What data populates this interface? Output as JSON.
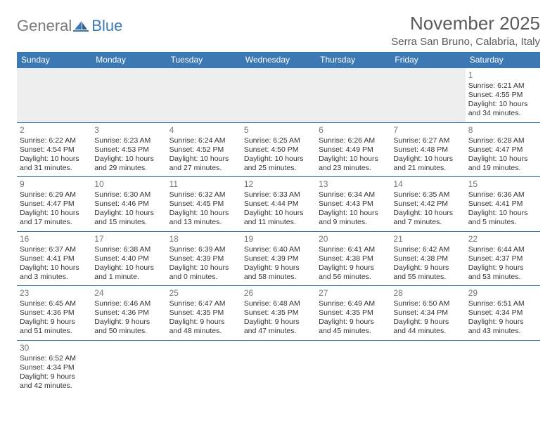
{
  "logo": {
    "word1": "General",
    "word2": "Blue"
  },
  "title": "November 2025",
  "location": "Serra San Bruno, Calabria, Italy",
  "colors": {
    "header_bg": "#3c78b4",
    "header_text": "#ffffff",
    "border": "#3c78b4",
    "empty_bg": "#eeeeee",
    "text": "#333333",
    "daynum": "#777777",
    "logo_gray": "#7a7a7a",
    "logo_blue": "#3c78b4"
  },
  "weekdays": [
    "Sunday",
    "Monday",
    "Tuesday",
    "Wednesday",
    "Thursday",
    "Friday",
    "Saturday"
  ],
  "weeks": [
    [
      null,
      null,
      null,
      null,
      null,
      null,
      {
        "n": "1",
        "sr": "6:21 AM",
        "ss": "4:55 PM",
        "dl": "10 hours and 34 minutes."
      }
    ],
    [
      {
        "n": "2",
        "sr": "6:22 AM",
        "ss": "4:54 PM",
        "dl": "10 hours and 31 minutes."
      },
      {
        "n": "3",
        "sr": "6:23 AM",
        "ss": "4:53 PM",
        "dl": "10 hours and 29 minutes."
      },
      {
        "n": "4",
        "sr": "6:24 AM",
        "ss": "4:52 PM",
        "dl": "10 hours and 27 minutes."
      },
      {
        "n": "5",
        "sr": "6:25 AM",
        "ss": "4:50 PM",
        "dl": "10 hours and 25 minutes."
      },
      {
        "n": "6",
        "sr": "6:26 AM",
        "ss": "4:49 PM",
        "dl": "10 hours and 23 minutes."
      },
      {
        "n": "7",
        "sr": "6:27 AM",
        "ss": "4:48 PM",
        "dl": "10 hours and 21 minutes."
      },
      {
        "n": "8",
        "sr": "6:28 AM",
        "ss": "4:47 PM",
        "dl": "10 hours and 19 minutes."
      }
    ],
    [
      {
        "n": "9",
        "sr": "6:29 AM",
        "ss": "4:47 PM",
        "dl": "10 hours and 17 minutes."
      },
      {
        "n": "10",
        "sr": "6:30 AM",
        "ss": "4:46 PM",
        "dl": "10 hours and 15 minutes."
      },
      {
        "n": "11",
        "sr": "6:32 AM",
        "ss": "4:45 PM",
        "dl": "10 hours and 13 minutes."
      },
      {
        "n": "12",
        "sr": "6:33 AM",
        "ss": "4:44 PM",
        "dl": "10 hours and 11 minutes."
      },
      {
        "n": "13",
        "sr": "6:34 AM",
        "ss": "4:43 PM",
        "dl": "10 hours and 9 minutes."
      },
      {
        "n": "14",
        "sr": "6:35 AM",
        "ss": "4:42 PM",
        "dl": "10 hours and 7 minutes."
      },
      {
        "n": "15",
        "sr": "6:36 AM",
        "ss": "4:41 PM",
        "dl": "10 hours and 5 minutes."
      }
    ],
    [
      {
        "n": "16",
        "sr": "6:37 AM",
        "ss": "4:41 PM",
        "dl": "10 hours and 3 minutes."
      },
      {
        "n": "17",
        "sr": "6:38 AM",
        "ss": "4:40 PM",
        "dl": "10 hours and 1 minute."
      },
      {
        "n": "18",
        "sr": "6:39 AM",
        "ss": "4:39 PM",
        "dl": "10 hours and 0 minutes."
      },
      {
        "n": "19",
        "sr": "6:40 AM",
        "ss": "4:39 PM",
        "dl": "9 hours and 58 minutes."
      },
      {
        "n": "20",
        "sr": "6:41 AM",
        "ss": "4:38 PM",
        "dl": "9 hours and 56 minutes."
      },
      {
        "n": "21",
        "sr": "6:42 AM",
        "ss": "4:38 PM",
        "dl": "9 hours and 55 minutes."
      },
      {
        "n": "22",
        "sr": "6:44 AM",
        "ss": "4:37 PM",
        "dl": "9 hours and 53 minutes."
      }
    ],
    [
      {
        "n": "23",
        "sr": "6:45 AM",
        "ss": "4:36 PM",
        "dl": "9 hours and 51 minutes."
      },
      {
        "n": "24",
        "sr": "6:46 AM",
        "ss": "4:36 PM",
        "dl": "9 hours and 50 minutes."
      },
      {
        "n": "25",
        "sr": "6:47 AM",
        "ss": "4:35 PM",
        "dl": "9 hours and 48 minutes."
      },
      {
        "n": "26",
        "sr": "6:48 AM",
        "ss": "4:35 PM",
        "dl": "9 hours and 47 minutes."
      },
      {
        "n": "27",
        "sr": "6:49 AM",
        "ss": "4:35 PM",
        "dl": "9 hours and 45 minutes."
      },
      {
        "n": "28",
        "sr": "6:50 AM",
        "ss": "4:34 PM",
        "dl": "9 hours and 44 minutes."
      },
      {
        "n": "29",
        "sr": "6:51 AM",
        "ss": "4:34 PM",
        "dl": "9 hours and 43 minutes."
      }
    ],
    [
      {
        "n": "30",
        "sr": "6:52 AM",
        "ss": "4:34 PM",
        "dl": "9 hours and 42 minutes."
      },
      null,
      null,
      null,
      null,
      null,
      null
    ]
  ],
  "labels": {
    "sunrise": "Sunrise:",
    "sunset": "Sunset:",
    "daylight": "Daylight:"
  }
}
